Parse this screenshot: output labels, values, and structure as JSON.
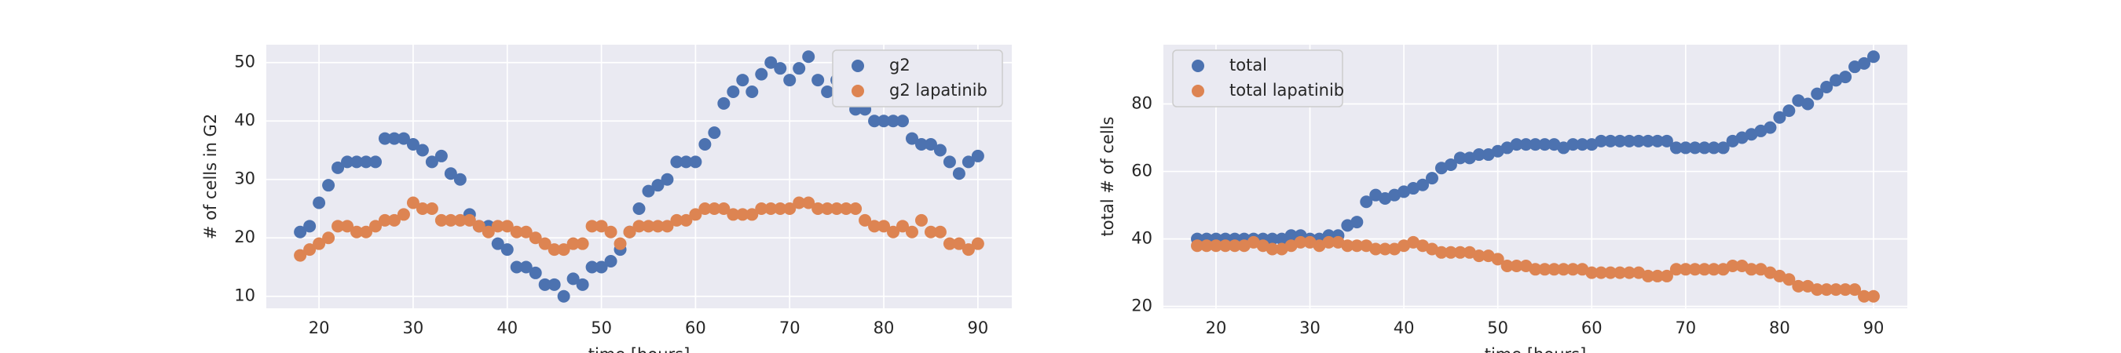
{
  "chart_data": [
    {
      "type": "scatter",
      "xlabel": "time [hours]",
      "ylabel": "# of cells in G2",
      "x": [
        18,
        19,
        20,
        21,
        22,
        23,
        24,
        25,
        26,
        27,
        28,
        29,
        30,
        31,
        32,
        33,
        34,
        35,
        36,
        37,
        38,
        39,
        40,
        41,
        42,
        43,
        44,
        45,
        46,
        47,
        48,
        49,
        50,
        51,
        52,
        53,
        54,
        55,
        56,
        57,
        58,
        59,
        60,
        61,
        62,
        63,
        64,
        65,
        66,
        67,
        68,
        69,
        70,
        71,
        72,
        73,
        74,
        75,
        76,
        77,
        78,
        79,
        80,
        81,
        82,
        83,
        84,
        85,
        86,
        87,
        88,
        89,
        90
      ],
      "series": [
        {
          "name": "g2",
          "color": "#4c72b0",
          "values": [
            21,
            22,
            26,
            29,
            32,
            33,
            33,
            33,
            33,
            37,
            37,
            37,
            36,
            35,
            33,
            34,
            31,
            30,
            24,
            22,
            22,
            19,
            18,
            15,
            15,
            14,
            12,
            12,
            10,
            13,
            12,
            15,
            15,
            16,
            18,
            21,
            25,
            28,
            29,
            30,
            33,
            33,
            33,
            36,
            38,
            43,
            45,
            47,
            45,
            48,
            50,
            49,
            47,
            49,
            51,
            47,
            45,
            47,
            45,
            42,
            42,
            40,
            40,
            40,
            40,
            37,
            36,
            36,
            35,
            33,
            31,
            33,
            34
          ]
        },
        {
          "name": "g2 lapatinib",
          "color": "#dd8452",
          "values": [
            17,
            18,
            19,
            20,
            22,
            22,
            21,
            21,
            22,
            23,
            23,
            24,
            26,
            25,
            25,
            23,
            23,
            23,
            23,
            22,
            21,
            22,
            22,
            21,
            21,
            20,
            19,
            18,
            18,
            19,
            19,
            22,
            22,
            21,
            19,
            21,
            22,
            22,
            22,
            22,
            23,
            23,
            24,
            25,
            25,
            25,
            24,
            24,
            24,
            25,
            25,
            25,
            25,
            26,
            26,
            25,
            25,
            25,
            25,
            25,
            23,
            22,
            22,
            21,
            22,
            21,
            23,
            21,
            21,
            19,
            19,
            18,
            19
          ]
        }
      ],
      "xlim": [
        14.4,
        93.6
      ],
      "xticks": [
        20,
        30,
        40,
        50,
        60,
        70,
        80,
        90
      ],
      "ylim": [
        7.95,
        53.05
      ],
      "yticks": [
        10,
        20,
        30,
        40,
        50
      ],
      "grid": true,
      "legend": "upper right"
    },
    {
      "type": "scatter",
      "xlabel": "time [hours]",
      "ylabel": "total # of cells",
      "x": [
        18,
        19,
        20,
        21,
        22,
        23,
        24,
        25,
        26,
        27,
        28,
        29,
        30,
        31,
        32,
        33,
        34,
        35,
        36,
        37,
        38,
        39,
        40,
        41,
        42,
        43,
        44,
        45,
        46,
        47,
        48,
        49,
        50,
        51,
        52,
        53,
        54,
        55,
        56,
        57,
        58,
        59,
        60,
        61,
        62,
        63,
        64,
        65,
        66,
        67,
        68,
        69,
        70,
        71,
        72,
        73,
        74,
        75,
        76,
        77,
        78,
        79,
        80,
        81,
        82,
        83,
        84,
        85,
        86,
        87,
        88,
        89,
        90
      ],
      "series": [
        {
          "name": "total",
          "color": "#4c72b0",
          "values": [
            40,
            40,
            40,
            40,
            40,
            40,
            40,
            40,
            40,
            40,
            41,
            41,
            40,
            40,
            41,
            41,
            44,
            45,
            51,
            53,
            52,
            53,
            54,
            55,
            56,
            58,
            61,
            62,
            64,
            64,
            65,
            65,
            66,
            67,
            68,
            68,
            68,
            68,
            68,
            67,
            68,
            68,
            68,
            69,
            69,
            69,
            69,
            69,
            69,
            69,
            69,
            67,
            67,
            67,
            67,
            67,
            67,
            69,
            70,
            71,
            72,
            73,
            76,
            78,
            81,
            80,
            83,
            85,
            87,
            88,
            91,
            92,
            94
          ]
        },
        {
          "name": "total lapatinib",
          "color": "#dd8452",
          "values": [
            38,
            38,
            38,
            38,
            38,
            38,
            39,
            38,
            37,
            37,
            38,
            39,
            39,
            38,
            39,
            39,
            38,
            38,
            38,
            37,
            37,
            37,
            38,
            39,
            38,
            37,
            36,
            36,
            36,
            36,
            35,
            35,
            34,
            32,
            32,
            32,
            31,
            31,
            31,
            31,
            31,
            31,
            30,
            30,
            30,
            30,
            30,
            30,
            29,
            29,
            29,
            31,
            31,
            31,
            31,
            31,
            31,
            32,
            32,
            31,
            31,
            30,
            29,
            28,
            26,
            26,
            25,
            25,
            25,
            25,
            25,
            23,
            23
          ]
        }
      ],
      "xlim": [
        14.4,
        93.6
      ],
      "xticks": [
        20,
        30,
        40,
        50,
        60,
        70,
        80,
        90
      ],
      "ylim": [
        19.45,
        97.55
      ],
      "yticks": [
        20,
        40,
        60,
        80
      ],
      "grid": true,
      "legend": "upper left"
    }
  ]
}
